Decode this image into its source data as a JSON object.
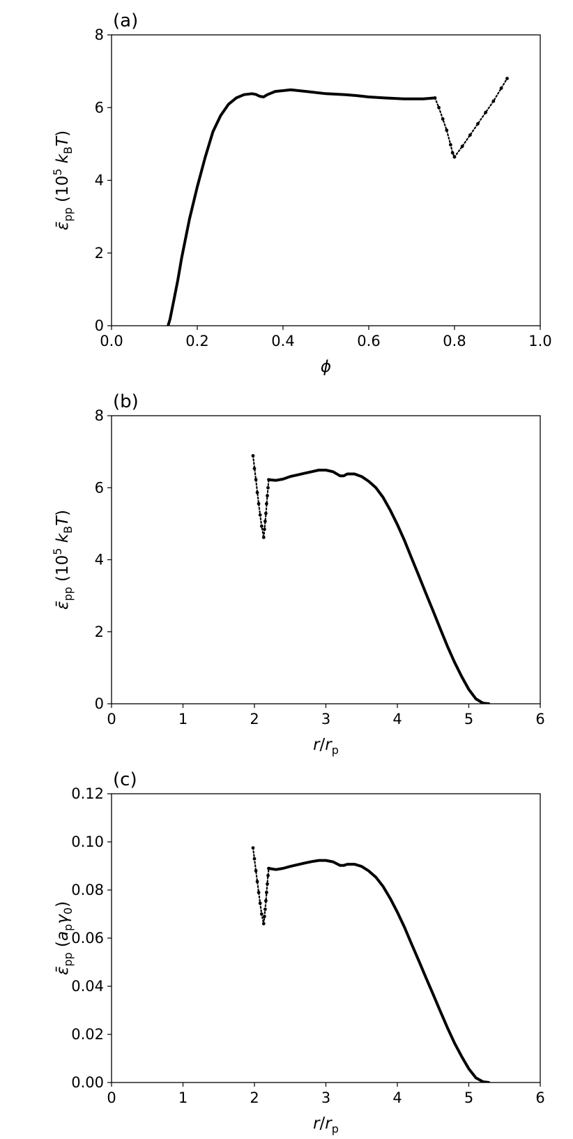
{
  "chart_data": [
    {
      "type": "scatter",
      "panel_label": "(a)",
      "xlabel": "ϕ",
      "ylabel": {
        "base": "ε̄",
        "sub": "pp",
        "rest": " (10",
        "sup": "5",
        "rest2": " k",
        "sub2": "B",
        "rest3": "T)"
      },
      "xlim": [
        0.0,
        1.1
      ],
      "ylim": [
        0,
        9
      ],
      "xticks": [
        "0.0",
        "0.2",
        "0.4",
        "0.6",
        "0.8",
        "1.0"
      ],
      "yticks": [
        "0",
        "2",
        "4",
        "6",
        "8"
      ],
      "grid": false,
      "series": [
        {
          "segments": [
            [
              [
                0.145,
                0.0
              ],
              [
                0.15,
                0.2
              ],
              [
                0.16,
                0.8
              ],
              [
                0.17,
                1.4
              ],
              [
                0.18,
                2.1
              ],
              [
                0.19,
                2.7
              ],
              [
                0.2,
                3.3
              ],
              [
                0.22,
                4.3
              ],
              [
                0.24,
                5.2
              ],
              [
                0.26,
                6.0
              ],
              [
                0.28,
                6.5
              ],
              [
                0.3,
                6.85
              ],
              [
                0.32,
                7.05
              ],
              [
                0.34,
                7.15
              ],
              [
                0.36,
                7.18
              ],
              [
                0.37,
                7.16
              ],
              [
                0.38,
                7.1
              ],
              [
                0.39,
                7.08
              ],
              [
                0.4,
                7.15
              ],
              [
                0.42,
                7.25
              ],
              [
                0.46,
                7.3
              ],
              [
                0.5,
                7.25
              ],
              [
                0.55,
                7.18
              ],
              [
                0.6,
                7.15
              ],
              [
                0.63,
                7.12
              ],
              [
                0.66,
                7.08
              ],
              [
                0.7,
                7.05
              ],
              [
                0.75,
                7.02
              ],
              [
                0.8,
                7.02
              ],
              [
                0.83,
                7.05
              ]
            ],
            [
              [
                0.83,
                7.05
              ],
              [
                0.84,
                6.75
              ],
              [
                0.85,
                6.4
              ],
              [
                0.86,
                6.05
              ],
              [
                0.87,
                5.6
              ],
              [
                0.875,
                5.35
              ],
              [
                0.88,
                5.22
              ]
            ],
            [
              [
                0.88,
                5.22
              ],
              [
                0.9,
                5.55
              ],
              [
                0.92,
                5.9
              ],
              [
                0.94,
                6.25
              ],
              [
                0.96,
                6.6
              ],
              [
                0.98,
                6.95
              ],
              [
                1.0,
                7.35
              ],
              [
                1.01,
                7.55
              ],
              [
                1.015,
                7.65
              ]
            ]
          ],
          "dots": [
            [
              0.83,
              7.05
            ],
            [
              0.84,
              6.75
            ],
            [
              0.85,
              6.4
            ],
            [
              0.86,
              6.05
            ],
            [
              0.87,
              5.6
            ],
            [
              0.875,
              5.35
            ],
            [
              0.88,
              5.22
            ],
            [
              0.9,
              5.55
            ],
            [
              0.92,
              5.9
            ],
            [
              0.94,
              6.25
            ],
            [
              0.96,
              6.6
            ],
            [
              0.98,
              6.95
            ],
            [
              1.0,
              7.35
            ],
            [
              1.015,
              7.65
            ]
          ]
        }
      ]
    },
    {
      "type": "scatter",
      "panel_label": "(b)",
      "xlabel": {
        "base": "r",
        "slash": "/",
        "base2": "r",
        "sub": "p"
      },
      "ylabel": {
        "base": "ε̄",
        "sub": "pp",
        "rest": " (10",
        "sup": "5",
        "rest2": " k",
        "sub2": "B",
        "rest3": "T)"
      },
      "xlim": [
        0,
        6
      ],
      "ylim": [
        0,
        9
      ],
      "xticks": [
        "0",
        "1",
        "2",
        "3",
        "4",
        "5",
        "6"
      ],
      "yticks": [
        "0",
        "2",
        "4",
        "6",
        "8"
      ],
      "grid": false,
      "series": [
        {
          "segments": [
            [
              [
                1.98,
                7.75
              ],
              [
                2.02,
                7.0
              ],
              [
                2.06,
                6.25
              ],
              [
                2.1,
                5.55
              ],
              [
                2.13,
                5.2
              ]
            ],
            [
              [
                2.13,
                5.2
              ],
              [
                2.16,
                5.9
              ],
              [
                2.18,
                6.5
              ],
              [
                2.2,
                7.0
              ]
            ],
            [
              [
                2.2,
                7.0
              ],
              [
                2.3,
                6.98
              ],
              [
                2.4,
                7.02
              ],
              [
                2.5,
                7.1
              ],
              [
                2.6,
                7.15
              ],
              [
                2.7,
                7.2
              ],
              [
                2.8,
                7.25
              ],
              [
                2.9,
                7.3
              ],
              [
                3.0,
                7.3
              ],
              [
                3.1,
                7.25
              ],
              [
                3.2,
                7.12
              ],
              [
                3.25,
                7.12
              ],
              [
                3.3,
                7.18
              ],
              [
                3.4,
                7.18
              ],
              [
                3.5,
                7.1
              ],
              [
                3.6,
                6.95
              ],
              [
                3.7,
                6.75
              ],
              [
                3.8,
                6.45
              ],
              [
                3.9,
                6.05
              ],
              [
                4.0,
                5.6
              ],
              [
                4.1,
                5.1
              ],
              [
                4.2,
                4.55
              ],
              [
                4.3,
                4.0
              ],
              [
                4.4,
                3.45
              ],
              [
                4.5,
                2.9
              ],
              [
                4.6,
                2.35
              ],
              [
                4.7,
                1.8
              ],
              [
                4.8,
                1.3
              ],
              [
                4.9,
                0.85
              ],
              [
                5.0,
                0.45
              ],
              [
                5.1,
                0.15
              ],
              [
                5.2,
                0.02
              ],
              [
                5.28,
                0.0
              ]
            ]
          ],
          "dots": [
            [
              1.98,
              7.75
            ],
            [
              2.0,
              7.35
            ],
            [
              2.02,
              7.0
            ],
            [
              2.04,
              6.6
            ],
            [
              2.06,
              6.25
            ],
            [
              2.08,
              5.9
            ],
            [
              2.1,
              5.55
            ],
            [
              2.13,
              5.2
            ],
            [
              2.14,
              5.45
            ],
            [
              2.15,
              5.7
            ],
            [
              2.16,
              5.95
            ],
            [
              2.17,
              6.25
            ],
            [
              2.18,
              6.5
            ],
            [
              2.19,
              6.75
            ],
            [
              2.2,
              7.0
            ]
          ]
        }
      ]
    },
    {
      "type": "scatter",
      "panel_label": "(c)",
      "xlabel": {
        "base": "r",
        "slash": "/",
        "base2": "r",
        "sub": "p"
      },
      "ylabel": {
        "base": "ε̄",
        "sub": "pp",
        "rest": " (a",
        "sub2": "p",
        "rest2": "γ",
        "sub3": "0",
        "rest3": ")"
      },
      "xlim": [
        0,
        6
      ],
      "ylim": [
        0.0,
        0.12
      ],
      "xticks": [
        "0",
        "1",
        "2",
        "3",
        "4",
        "5",
        "6"
      ],
      "yticks": [
        "0.00",
        "0.02",
        "0.04",
        "0.06",
        "0.08",
        "0.10",
        "0.12"
      ],
      "grid": false,
      "series": [
        {
          "segments": [
            [
              [
                1.98,
                0.0975
              ],
              [
                2.02,
                0.088
              ],
              [
                2.06,
                0.079
              ],
              [
                2.1,
                0.07
              ],
              [
                2.13,
                0.066
              ]
            ],
            [
              [
                2.13,
                0.066
              ],
              [
                2.16,
                0.075
              ],
              [
                2.18,
                0.083
              ],
              [
                2.2,
                0.089
              ]
            ],
            [
              [
                2.2,
                0.089
              ],
              [
                2.3,
                0.0885
              ],
              [
                2.4,
                0.089
              ],
              [
                2.5,
                0.0898
              ],
              [
                2.6,
                0.0905
              ],
              [
                2.7,
                0.0912
              ],
              [
                2.8,
                0.0918
              ],
              [
                2.9,
                0.0923
              ],
              [
                3.0,
                0.0923
              ],
              [
                3.1,
                0.0917
              ],
              [
                3.2,
                0.0902
              ],
              [
                3.25,
                0.0902
              ],
              [
                3.3,
                0.0907
              ],
              [
                3.4,
                0.0907
              ],
              [
                3.5,
                0.0898
              ],
              [
                3.6,
                0.0879
              ],
              [
                3.7,
                0.0853
              ],
              [
                3.8,
                0.0815
              ],
              [
                3.9,
                0.0765
              ],
              [
                4.0,
                0.0708
              ],
              [
                4.1,
                0.0645
              ],
              [
                4.2,
                0.0575
              ],
              [
                4.3,
                0.0506
              ],
              [
                4.4,
                0.0436
              ],
              [
                4.5,
                0.0367
              ],
              [
                4.6,
                0.0297
              ],
              [
                4.7,
                0.0228
              ],
              [
                4.8,
                0.0164
              ],
              [
                4.9,
                0.0108
              ],
              [
                5.0,
                0.0057
              ],
              [
                5.1,
                0.0019
              ],
              [
                5.2,
                0.0003
              ],
              [
                5.28,
                0.0
              ]
            ]
          ],
          "dots": [
            [
              1.98,
              0.0975
            ],
            [
              2.0,
              0.093
            ],
            [
              2.02,
              0.088
            ],
            [
              2.04,
              0.0835
            ],
            [
              2.06,
              0.079
            ],
            [
              2.08,
              0.0745
            ],
            [
              2.1,
              0.07
            ],
            [
              2.13,
              0.066
            ],
            [
              2.14,
              0.069
            ],
            [
              2.15,
              0.072
            ],
            [
              2.16,
              0.0755
            ],
            [
              2.17,
              0.079
            ],
            [
              2.18,
              0.0825
            ],
            [
              2.19,
              0.086
            ],
            [
              2.2,
              0.089
            ]
          ]
        }
      ]
    }
  ]
}
